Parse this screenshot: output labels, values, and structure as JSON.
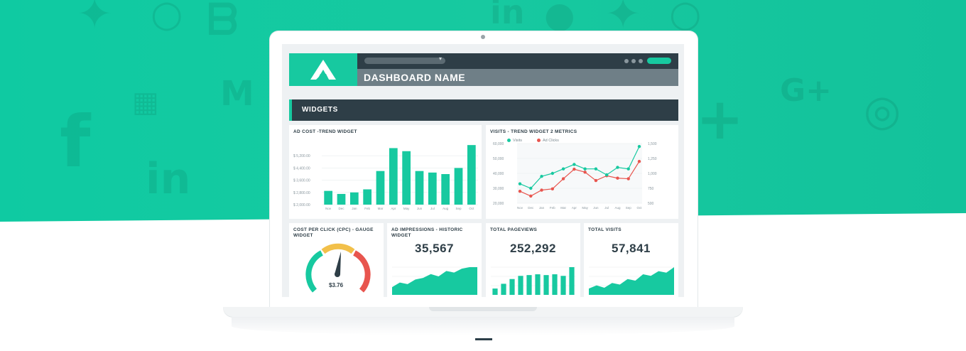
{
  "header": {
    "dashboard_name": "DASHBOARD NAME"
  },
  "widgets_bar": {
    "label": "WIDGETS"
  },
  "background_icons": [
    "twitter-icon",
    "linkedin-icon",
    "bing-icon",
    "google-plus-icon",
    "instagram-icon",
    "facebook-icon",
    "gmail-icon",
    "plus-icon"
  ],
  "colors": {
    "teal": "#17c9a0",
    "dark": "#2e3e47",
    "red": "#e8554e",
    "yellow": "#f2c04a"
  },
  "ad_cost_widget": {
    "title": "AD COST -TREND WIDGET",
    "chart_data": {
      "type": "bar",
      "categories": [
        "Nov",
        "Dec",
        "Jan",
        "Feb",
        "Mar",
        "Apr",
        "May",
        "Jun",
        "Jul",
        "Aug",
        "Sep",
        "Oct"
      ],
      "values": [
        2900,
        2700,
        2800,
        3000,
        4200,
        5700,
        5500,
        4200,
        4100,
        4000,
        4400,
        5900
      ],
      "yticks": [
        "$ 2,000.00",
        "$ 2,800.00",
        "$ 3,600.00",
        "$ 4,400.00",
        "$ 5,200.00"
      ],
      "ylim": [
        2000,
        6000
      ]
    }
  },
  "visits_widget": {
    "title": "VISITS - TREND WIDGET 2 METRICS",
    "chart_data": {
      "type": "line",
      "categories": [
        "Nov",
        "Dec",
        "Jan",
        "Feb",
        "Mar",
        "Apr",
        "May",
        "Jun",
        "Jul",
        "Aug",
        "Sep",
        "Oct"
      ],
      "series": [
        {
          "name": "Visits",
          "values": [
            33000,
            30000,
            38000,
            40000,
            43000,
            46000,
            43000,
            43000,
            39000,
            44000,
            43000,
            58000
          ]
        },
        {
          "name": "Ad Clicks",
          "values": [
            700,
            620,
            720,
            740,
            910,
            1070,
            1020,
            880,
            960,
            920,
            910,
            1200
          ]
        }
      ],
      "yticks_left": [
        "20,000",
        "30,000",
        "40,000",
        "50,000",
        "60,000"
      ],
      "yticks_right": [
        "500",
        "750",
        "1,000",
        "1,250",
        "1,500"
      ],
      "ylim_left": [
        20000,
        60000
      ],
      "ylim_right": [
        500,
        1500
      ]
    }
  },
  "cpc_widget": {
    "title_line1": "COST PER CLICK (CPC) - GAUGE",
    "title_line2": "WIDGET",
    "value": "$3.76",
    "gauge_fraction": 0.55
  },
  "impressions_widget": {
    "title_line1": "AD IMPRESSIONS - HISTORIC",
    "title_line2": "WIDGET",
    "value": "35,567",
    "chart_data": {
      "type": "area",
      "values": [
        10,
        16,
        14,
        20,
        22,
        27,
        24,
        31,
        29,
        34,
        36,
        36
      ]
    }
  },
  "pageviews_widget": {
    "title": "TOTAL PAGEVIEWS",
    "value": "252,292",
    "chart_data": {
      "type": "bar",
      "values": [
        8,
        14,
        20,
        24,
        25,
        26,
        25,
        26,
        24,
        35
      ]
    }
  },
  "visits_total_widget": {
    "title": "TOTAL VISITS",
    "value": "57,841",
    "chart_data": {
      "type": "area",
      "values": [
        8,
        12,
        9,
        15,
        13,
        20,
        18,
        26,
        24,
        30,
        28,
        35
      ]
    }
  }
}
